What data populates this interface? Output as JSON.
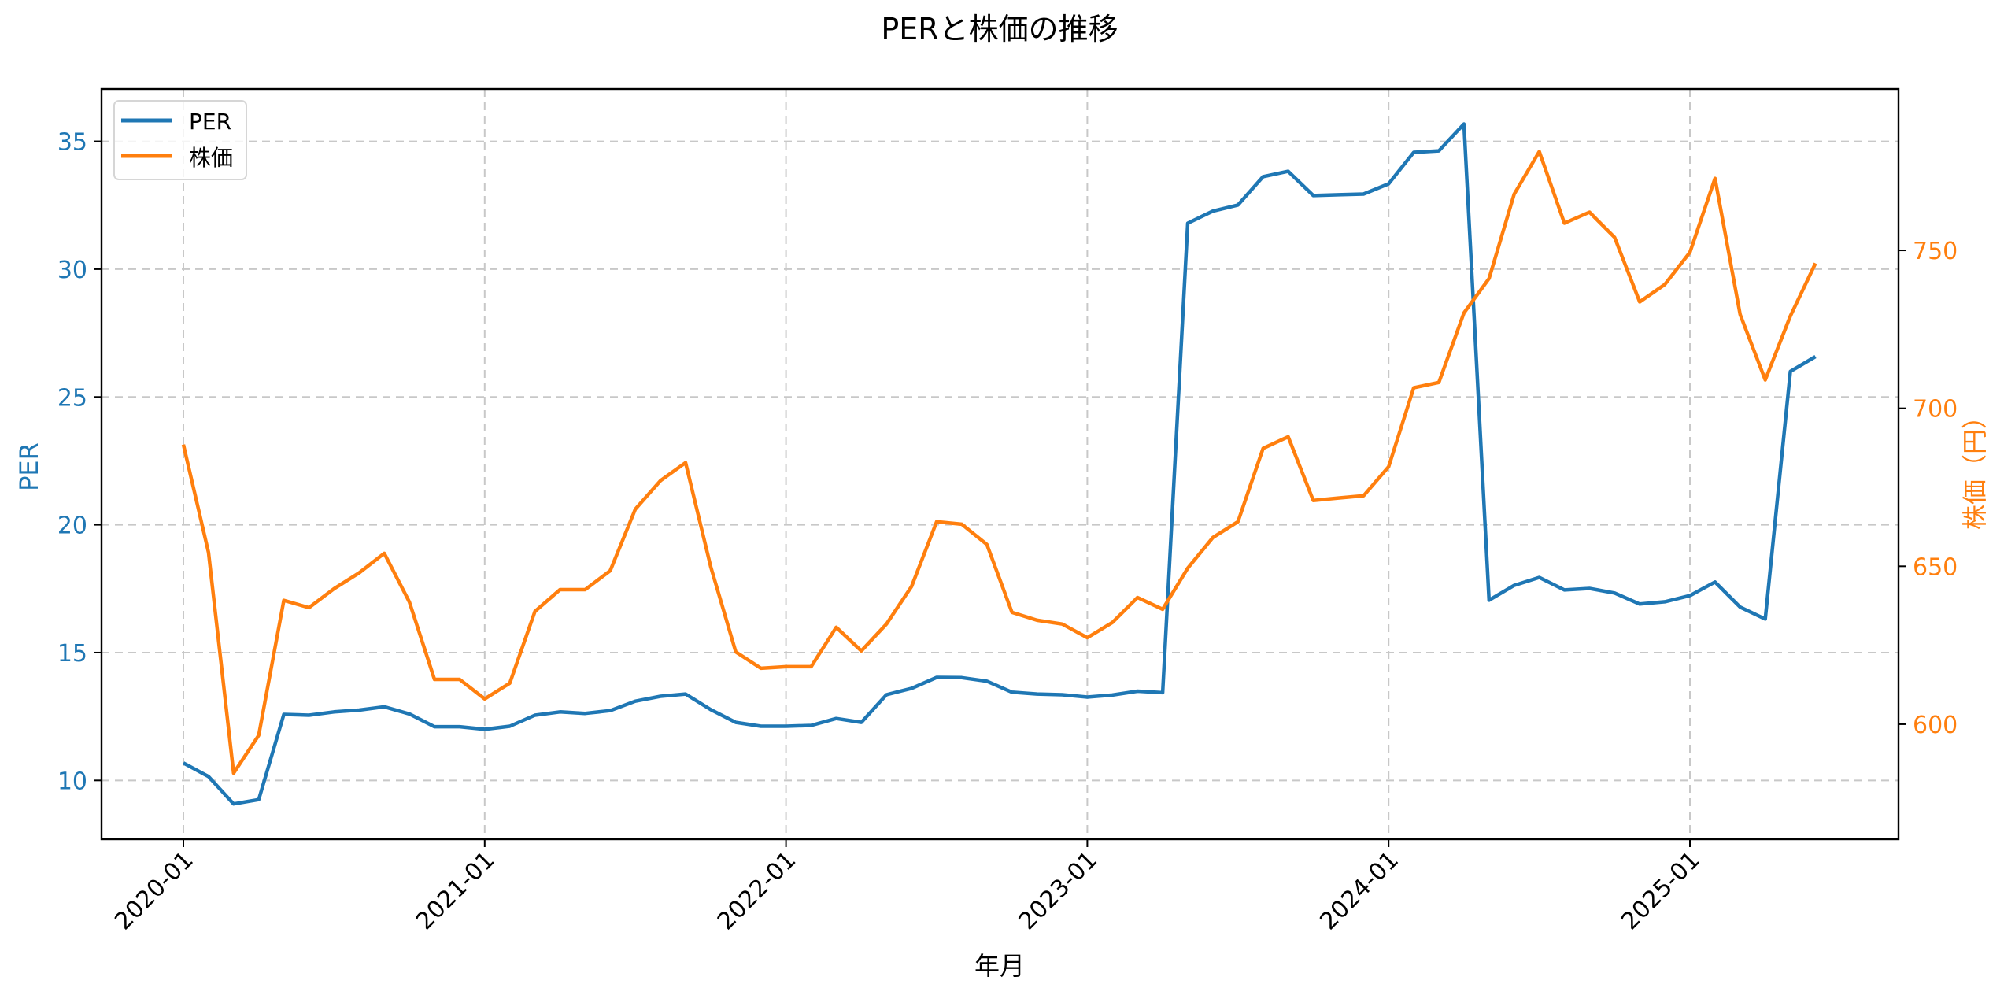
{
  "chart_data": {
    "type": "line",
    "title": "PERと株価の推移",
    "xlabel": "年月",
    "ylabel": "PER",
    "ylabel_right": "株価（円）",
    "x_ticks": [
      "2020-01",
      "2021-01",
      "2022-01",
      "2023-01",
      "2024-01",
      "2025-01"
    ],
    "y_ticks_left": [
      10,
      15,
      20,
      25,
      30,
      35
    ],
    "y_ticks_right": [
      600,
      650,
      700,
      750
    ],
    "ylim_left": [
      7.7,
      37.05
    ],
    "ylim_right": [
      563.6,
      801.1
    ],
    "grid": true,
    "legend_position": "upper left",
    "x": [
      "2020-01",
      "2020-02",
      "2020-03",
      "2020-04",
      "2020-05",
      "2020-06",
      "2020-07",
      "2020-08",
      "2020-09",
      "2020-10",
      "2020-11",
      "2020-12",
      "2021-01",
      "2021-02",
      "2021-03",
      "2021-04",
      "2021-05",
      "2021-06",
      "2021-07",
      "2021-08",
      "2021-09",
      "2021-10",
      "2021-11",
      "2021-12",
      "2022-01",
      "2022-02",
      "2022-03",
      "2022-04",
      "2022-05",
      "2022-06",
      "2022-07",
      "2022-08",
      "2022-09",
      "2022-10",
      "2022-11",
      "2022-12",
      "2023-01",
      "2023-02",
      "2023-03",
      "2023-04",
      "2023-05",
      "2023-06",
      "2023-07",
      "2023-08",
      "2023-09",
      "2023-10",
      "2023-11",
      "2023-12",
      "2024-01",
      "2024-02",
      "2024-03",
      "2024-04",
      "2024-05",
      "2024-06",
      "2024-07",
      "2024-08",
      "2024-09",
      "2024-10",
      "2024-11",
      "2024-12",
      "2025-01",
      "2025-02",
      "2025-03",
      "2025-04",
      "2025-05",
      "2025-06"
    ],
    "series": [
      {
        "name": "PER",
        "axis": "left",
        "color": "#1f77b4",
        "values": [
          10.68,
          10.15,
          9.08,
          9.25,
          12.58,
          12.55,
          12.68,
          12.75,
          12.88,
          12.6,
          12.1,
          12.1,
          12.0,
          12.12,
          12.55,
          12.68,
          12.62,
          12.73,
          13.1,
          13.29,
          13.38,
          12.77,
          12.27,
          12.12,
          12.12,
          12.15,
          12.42,
          12.27,
          13.35,
          13.6,
          14.03,
          14.02,
          13.88,
          13.45,
          13.38,
          13.35,
          13.26,
          13.34,
          13.49,
          13.43,
          31.8,
          32.27,
          32.51,
          33.62,
          33.83,
          32.88,
          32.91,
          32.94,
          33.34,
          34.57,
          34.63,
          35.68,
          17.05,
          17.63,
          17.94,
          17.45,
          17.51,
          17.33,
          16.9,
          16.99,
          17.23,
          17.76,
          16.78,
          16.31,
          26.0,
          26.58
        ]
      },
      {
        "name": "株価",
        "axis": "right",
        "color": "#ff7f0e",
        "values": [
          688.5,
          654.4,
          584.5,
          596.5,
          639.2,
          636.9,
          642.9,
          647.9,
          654.1,
          638.7,
          614.2,
          614.2,
          608.0,
          613.0,
          635.7,
          642.6,
          642.6,
          648.6,
          668.1,
          677.1,
          682.8,
          649.9,
          622.9,
          617.7,
          618.2,
          618.2,
          630.7,
          623.2,
          631.7,
          643.6,
          664.1,
          663.3,
          656.9,
          635.4,
          632.9,
          631.7,
          627.4,
          632.2,
          640.1,
          636.4,
          649.4,
          659.1,
          664.1,
          687.3,
          691.0,
          670.8,
          671.6,
          672.3,
          681.5,
          706.5,
          708.2,
          730.2,
          741.1,
          767.8,
          781.3,
          758.6,
          762.1,
          754.1,
          733.7,
          739.2,
          749.4,
          772.8,
          729.7,
          709.0,
          729.2,
          745.9
        ]
      }
    ]
  },
  "legend": {
    "items": [
      {
        "label": "PER",
        "color": "#1f77b4"
      },
      {
        "label": "株価",
        "color": "#ff7f0e"
      }
    ]
  },
  "colors": {
    "per": "#1f77b4",
    "price": "#ff7f0e",
    "grid": "#c8c8c8",
    "axis": "#000000"
  }
}
